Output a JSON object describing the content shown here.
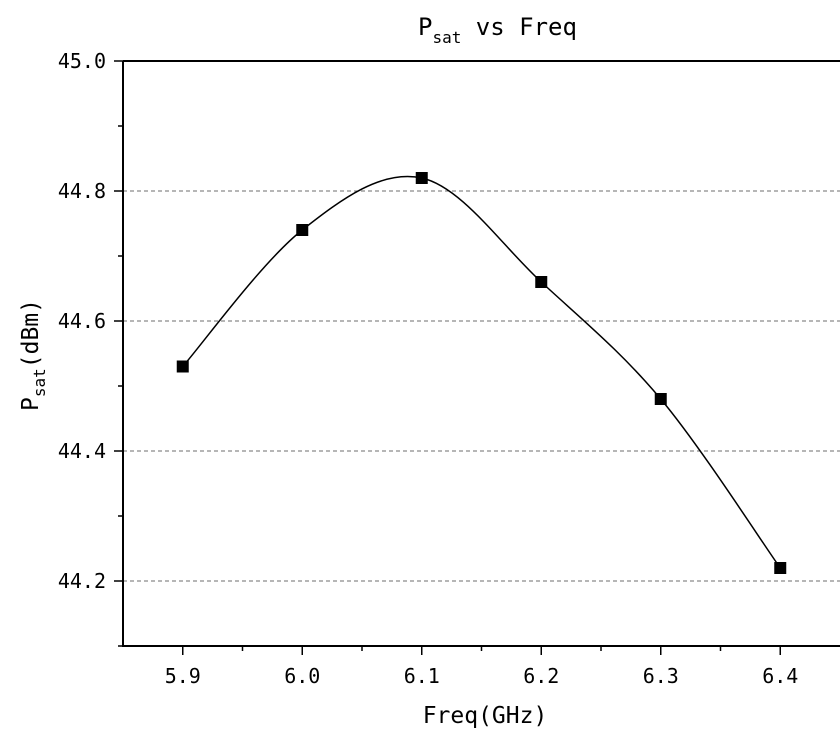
{
  "chart_data": {
    "type": "line",
    "title": {
      "main": "P",
      "sub": "sat",
      "rest": " vs Freq"
    },
    "xlabel": "Freq(GHz)",
    "ylabel": {
      "main": "P",
      "sub": "sat",
      "rest": "(dBm)"
    },
    "x": [
      5.9,
      6.0,
      6.1,
      6.2,
      6.3,
      6.4
    ],
    "x_tick_labels": [
      "5.9",
      "6.0",
      "6.1",
      "6.2",
      "6.3",
      "6.4"
    ],
    "y_tick_labels": [
      "44.2",
      "44.4",
      "44.6",
      "44.8",
      "45.0"
    ],
    "y_ticks": [
      44.2,
      44.4,
      44.6,
      44.8,
      45.0
    ],
    "xlim": [
      5.85,
      6.45
    ],
    "ylim": [
      44.1,
      45.0
    ],
    "series": [
      {
        "values": [
          44.53,
          44.74,
          44.82,
          44.66,
          44.48,
          44.22
        ],
        "marker": "square",
        "smooth": true,
        "color": "#000000"
      }
    ],
    "gridlines": {
      "axis": "y",
      "style": "dashed",
      "values": [
        44.2,
        44.4,
        44.6,
        44.8
      ]
    }
  }
}
